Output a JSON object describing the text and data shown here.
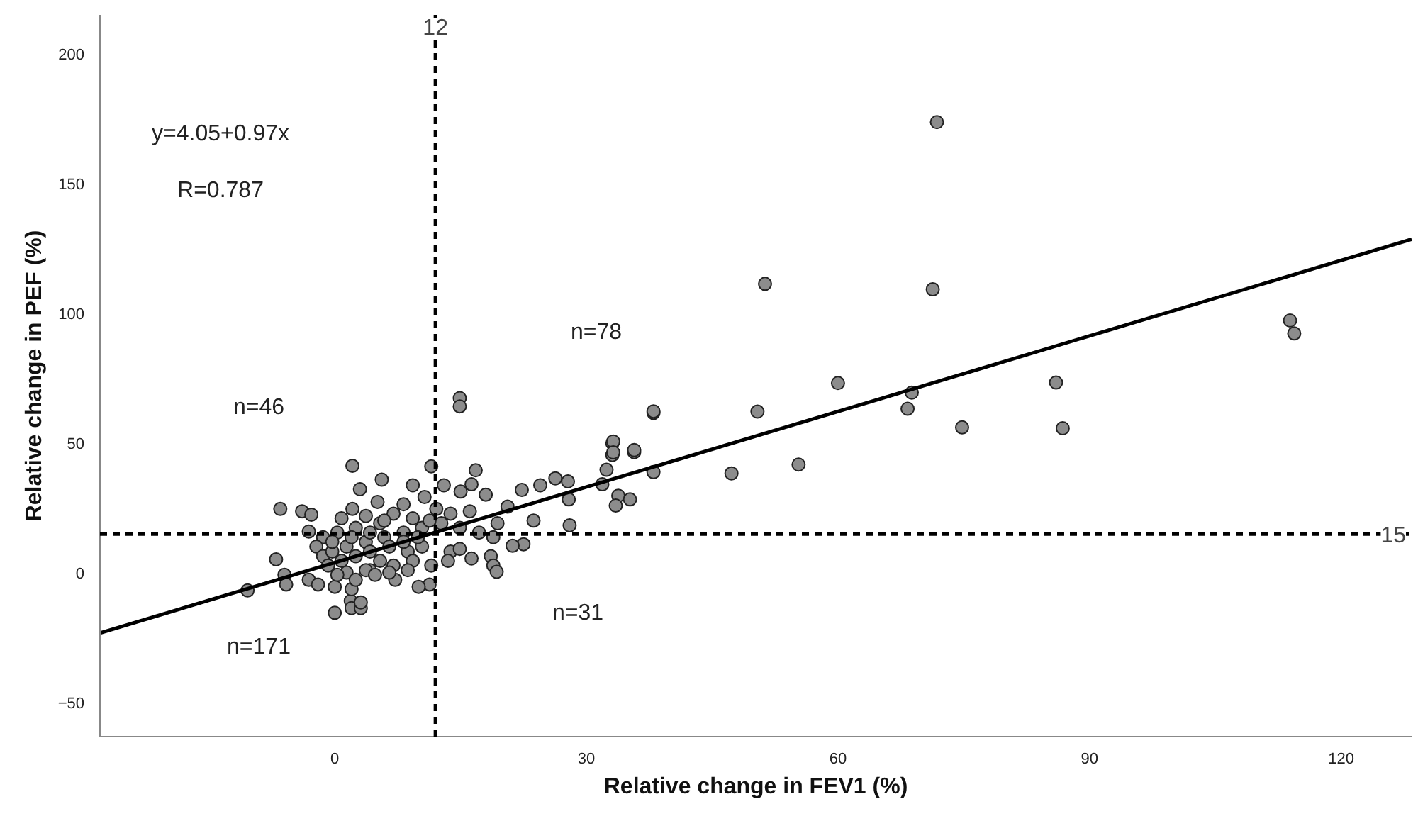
{
  "chart_data": {
    "type": "scatter",
    "xlabel": "Relative change in FEV1 (%)",
    "ylabel": "Relative change in PEF (%)",
    "xlim": [
      -28,
      128.4
    ],
    "ylim": [
      -63,
      215
    ],
    "xticks": [
      0,
      30,
      60,
      90,
      120
    ],
    "yticks": [
      -50,
      0,
      50,
      100,
      150,
      200
    ],
    "grid": false,
    "series": [
      {
        "marker": "circle",
        "color": "#8c8c8c",
        "x": [
          71.8,
          51.3,
          71.3,
          113.9,
          114.4,
          60.0,
          86.0,
          68.8,
          68.3,
          38.0,
          50.4,
          74.8,
          86.8,
          33.1,
          33.1,
          35.7,
          55.3,
          47.3,
          32.4,
          14.9,
          14.9,
          38.0,
          33.2,
          33.2,
          35.7,
          38.0,
          2.1,
          11.5,
          16.8,
          5.6,
          3.0,
          13.0,
          9.3,
          16.3,
          18.0,
          15.0,
          22.3,
          24.5,
          26.3,
          27.8,
          31.9,
          33.8,
          35.2,
          33.5,
          27.9,
          28.0,
          23.7,
          22.5,
          21.2,
          19.4,
          20.6,
          16.1,
          18.9,
          18.6,
          18.9,
          19.3,
          16.3,
          13.8,
          14.9,
          13.5,
          11.5,
          11.3,
          10.0,
          7.2,
          -6.5,
          -3.9,
          -2.8,
          -3.1,
          -7.0,
          -6.0,
          -5.8,
          -10.4,
          -3.1,
          -2.0,
          0,
          1.9,
          2.0,
          3.1,
          3.1,
          0,
          2.0,
          4.2,
          5.1,
          8.2,
          10.7,
          2.1,
          7.0,
          9.3,
          5.4,
          2.5,
          0.3,
          -1.4,
          -2.2,
          -1.4,
          -0.3,
          1.4,
          3.7,
          5.9,
          8.2,
          10.4,
          12.7,
          13.8,
          12.1,
          14.9,
          17.2,
          -0.8,
          0.8,
          2.5,
          4.2,
          6.5,
          8.7,
          10.4,
          9.3,
          7.0,
          5.4,
          3.7,
          1.4,
          0.3,
          2.5,
          4.8,
          6.5,
          8.7,
          8.2,
          9.9,
          4.2,
          2.0,
          -0.3,
          0.8,
          3.7,
          5.9,
          11.3
        ],
        "values": [
          173.7,
          111.4,
          109.3,
          97.3,
          92.3,
          73.2,
          73.4,
          69.5,
          63.3,
          61.7,
          62.2,
          56.1,
          55.8,
          50.0,
          45.5,
          46.6,
          41.8,
          38.4,
          39.8,
          67.4,
          64.2,
          62.3,
          50.7,
          46.5,
          47.4,
          38.9,
          41.3,
          41.1,
          39.6,
          36.0,
          32.3,
          33.8,
          33.8,
          34.2,
          30.2,
          31.4,
          32.0,
          33.8,
          36.5,
          35.3,
          34.2,
          29.8,
          28.4,
          26.0,
          28.4,
          18.4,
          20.2,
          11.1,
          10.5,
          19.2,
          25.6,
          23.8,
          13.8,
          6.5,
          2.9,
          0.5,
          5.6,
          8.3,
          9.3,
          4.7,
          2.9,
          -4.4,
          -5.3,
          -2.6,
          24.7,
          23.8,
          22.5,
          16.0,
          5.3,
          -0.7,
          -4.4,
          -6.7,
          -2.6,
          -4.4,
          -15.3,
          -10.7,
          -13.5,
          -13.5,
          -11.3,
          -5.3,
          -6.2,
          1.1,
          27.4,
          26.5,
          29.3,
          24.7,
          22.9,
          21.1,
          19.2,
          17.4,
          15.6,
          13.8,
          10.2,
          6.5,
          8.3,
          10.2,
          12.0,
          13.8,
          15.6,
          17.4,
          19.2,
          22.9,
          24.7,
          17.4,
          15.6,
          2.9,
          4.7,
          6.5,
          8.3,
          10.2,
          8.3,
          10.2,
          4.7,
          2.9,
          4.7,
          1.1,
          0.2,
          -0.7,
          -2.6,
          -0.7,
          0.2,
          1.1,
          12.0,
          13.8,
          15.6,
          13.8,
          12.0,
          21.1,
          22.0,
          20.2,
          20.2
        ]
      },
      {
        "type": "line",
        "color": "#000000",
        "x": [
          -28,
          128.4
        ],
        "values": [
          -23.1,
          128.6
        ]
      }
    ],
    "ref_lines": [
      {
        "axis": "x",
        "value": 12,
        "label": "12",
        "color": "#000000",
        "line_style": "dashed"
      },
      {
        "axis": "y",
        "value": 15,
        "label": "15",
        "color": "#000000",
        "line_style": "dashed"
      }
    ],
    "annotations": [
      "y=4.05+0.97x",
      "R=0.787",
      "n=46",
      "n=78",
      "n=171",
      "n=31"
    ]
  }
}
